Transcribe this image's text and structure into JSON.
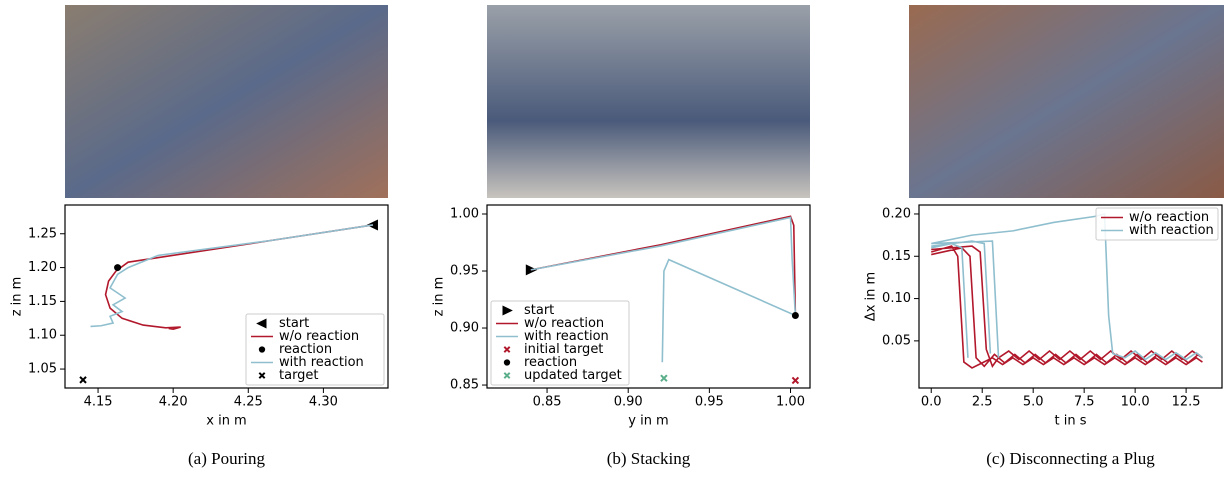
{
  "chart_data": [
    {
      "type": "line",
      "caption": "(a) Pouring",
      "xlabel": "x in m",
      "ylabel": "z in m",
      "xlim": [
        4.128,
        4.343
      ],
      "ylim": [
        1.022,
        1.2925
      ],
      "xticks": [
        4.15,
        {
          "value": 4.2,
          "label": "4.20"
        },
        4.25,
        {
          "value": 4.3,
          "label": "4.30"
        }
      ],
      "yticks": [
        1.25,
        {
          "value": 1.2,
          "label": "1.20"
        },
        1.15,
        {
          "value": 1.1,
          "label": "1.10"
        },
        1.05
      ],
      "legend": "lower right",
      "series": [
        {
          "name": "start",
          "color": "#000000",
          "marker": "triangle-left",
          "x": [
            4.333
          ],
          "values": [
            1.263
          ]
        },
        {
          "name": "w/o reaction",
          "color": "#b2182b",
          "x": [
            4.333,
            4.265,
            4.17,
            4.162,
            4.157,
            4.155,
            4.158,
            4.166,
            4.18,
            4.195,
            4.205,
            4.2,
            4.197
          ],
          "values": [
            1.263,
            1.24,
            1.208,
            1.195,
            1.18,
            1.16,
            1.14,
            1.125,
            1.115,
            1.111,
            1.112,
            1.109,
            1.11
          ]
        },
        {
          "name": "reaction",
          "color": "#000000",
          "marker": "circle",
          "x": [
            4.163
          ],
          "values": [
            1.2
          ]
        },
        {
          "name": "with reaction",
          "color": "#8fbfce",
          "x": [
            4.333,
            4.265,
            4.19,
            4.17,
            4.163,
            4.158,
            4.168,
            4.16,
            4.166,
            4.158,
            4.16,
            4.152,
            4.145
          ],
          "values": [
            1.263,
            1.24,
            1.218,
            1.2,
            1.19,
            1.17,
            1.155,
            1.145,
            1.135,
            1.128,
            1.118,
            1.114,
            1.113
          ]
        },
        {
          "name": "target",
          "color": "#000000",
          "marker": "x",
          "x": [
            4.14
          ],
          "values": [
            1.034
          ]
        }
      ]
    },
    {
      "type": "line",
      "caption": "(b) Stacking",
      "xlabel": "y in m",
      "ylabel": "z in m",
      "xlim": [
        0.813,
        1.012
      ],
      "ylim": [
        0.8474,
        1.0079
      ],
      "xticks": [
        0.85,
        {
          "value": 0.9,
          "label": "0.90"
        },
        0.95,
        {
          "value": 1.0,
          "label": "1.00"
        }
      ],
      "yticks": [
        {
          "value": 1.0,
          "label": "1.00"
        },
        0.95,
        {
          "value": 0.9,
          "label": "0.90"
        },
        0.85
      ],
      "legend": "lower left",
      "series": [
        {
          "name": "start",
          "color": "#000000",
          "marker": "triangle-right",
          "x": [
            0.84
          ],
          "values": [
            0.951
          ]
        },
        {
          "name": "w/o reaction",
          "color": "#b2182b",
          "x": [
            0.84,
            0.92,
            1.0,
            1.002,
            1.003
          ],
          "values": [
            0.951,
            0.973,
            0.998,
            0.99,
            0.911
          ]
        },
        {
          "name": "with reaction",
          "color": "#8fbfce",
          "x": [
            0.84,
            0.92,
            1.0,
            1.001,
            1.003,
            0.925,
            0.922,
            0.921
          ],
          "values": [
            0.951,
            0.972,
            0.997,
            0.96,
            0.911,
            0.96,
            0.95,
            0.87
          ]
        },
        {
          "name": "initial target",
          "color": "#b2182b",
          "marker": "x",
          "x": [
            1.003
          ],
          "values": [
            0.854
          ]
        },
        {
          "name": "reaction",
          "color": "#000000",
          "marker": "circle",
          "x": [
            1.003
          ],
          "values": [
            0.911
          ]
        },
        {
          "name": "updated target",
          "color": "#5aae8a",
          "marker": "x",
          "x": [
            0.922
          ],
          "values": [
            0.856
          ]
        }
      ]
    },
    {
      "type": "line",
      "caption": "(c) Disconnecting a Plug",
      "xlabel": "t in s",
      "ylabel": "Δx in m",
      "xlim": [
        -0.6,
        14.26
      ],
      "ylim": [
        -0.0057,
        0.2106
      ],
      "xticks": [
        {
          "value": 0,
          "label": "0.0"
        },
        2.5,
        {
          "value": 5,
          "label": "5.0"
        },
        7.5,
        {
          "value": 10,
          "label": "10.0"
        },
        12.5
      ],
      "yticks": [
        {
          "value": 0.2,
          "label": "0.20"
        },
        0.15,
        {
          "value": 0.1,
          "label": "0.10"
        },
        0.05
      ],
      "legend": "upper right",
      "series": [
        {
          "name": "w/o reaction",
          "color": "#b2182b",
          "x": [
            0,
            1,
            1.3,
            1.6,
            2,
            2.5,
            3,
            3.5,
            4,
            4.5,
            5,
            5.5,
            6,
            6.5,
            7,
            7.5,
            8,
            8.5,
            9,
            9.5,
            10,
            10.5,
            11,
            11.5,
            12,
            12.5,
            13,
            13.3,
            null,
            0,
            1.5,
            1.9,
            2.2,
            2.6,
            3.1,
            3.6,
            4.1,
            4.6,
            5.1,
            5.6,
            6.1,
            6.6,
            7.1,
            7.6,
            8.1,
            8.6,
            9.1,
            9.6,
            10.1,
            10.6,
            11.1,
            11.6,
            12.1,
            12.6,
            13.1,
            13.3,
            null,
            0,
            2,
            2.4,
            2.7,
            3,
            3.3,
            3.8,
            4.3,
            4.8,
            5.3,
            5.8,
            6.3,
            6.8,
            7.3,
            7.8,
            8.3,
            8.8,
            9.3,
            9.8,
            10.3,
            10.8,
            11.3,
            11.8,
            12.3,
            12.8,
            13.3
          ],
          "values": [
            0.155,
            0.162,
            0.15,
            0.025,
            0.018,
            0.024,
            0.03,
            0.022,
            0.03,
            0.022,
            0.03,
            0.022,
            0.03,
            0.022,
            0.03,
            0.022,
            0.03,
            0.022,
            0.03,
            0.022,
            0.03,
            0.022,
            0.03,
            0.022,
            0.03,
            0.022,
            0.03,
            0.025,
            null,
            0.152,
            0.16,
            0.15,
            0.03,
            0.02,
            0.034,
            0.024,
            0.034,
            0.024,
            0.034,
            0.024,
            0.034,
            0.024,
            0.034,
            0.024,
            0.034,
            0.024,
            0.034,
            0.024,
            0.034,
            0.024,
            0.034,
            0.024,
            0.034,
            0.024,
            0.034,
            0.03,
            null,
            0.158,
            0.162,
            0.155,
            0.04,
            0.02,
            0.03,
            0.038,
            0.028,
            0.038,
            0.028,
            0.038,
            0.028,
            0.038,
            0.028,
            0.038,
            0.028,
            0.038,
            0.028,
            0.038,
            0.028,
            0.038,
            0.028,
            0.038,
            0.028,
            0.038,
            0.03
          ]
        },
        {
          "name": "with reaction",
          "color": "#8fbfce",
          "x": [
            0,
            1,
            1.5,
            1.8,
            null,
            0,
            2,
            2.6,
            2.9,
            null,
            0,
            3,
            3.3,
            null,
            0,
            2,
            4,
            6,
            8,
            8.5,
            8.7,
            8.9,
            9.5,
            10,
            10.5,
            11,
            11.5,
            12,
            12.5,
            13,
            13.3
          ],
          "values": [
            0.16,
            0.165,
            0.16,
            0.03,
            null,
            0.162,
            0.168,
            0.165,
            0.035,
            null,
            0.165,
            0.168,
            0.03,
            null,
            0.165,
            0.175,
            0.18,
            0.19,
            0.197,
            0.2,
            0.08,
            0.035,
            0.03,
            0.038,
            0.028,
            0.036,
            0.028,
            0.036,
            0.028,
            0.036,
            0.03
          ]
        }
      ]
    }
  ]
}
